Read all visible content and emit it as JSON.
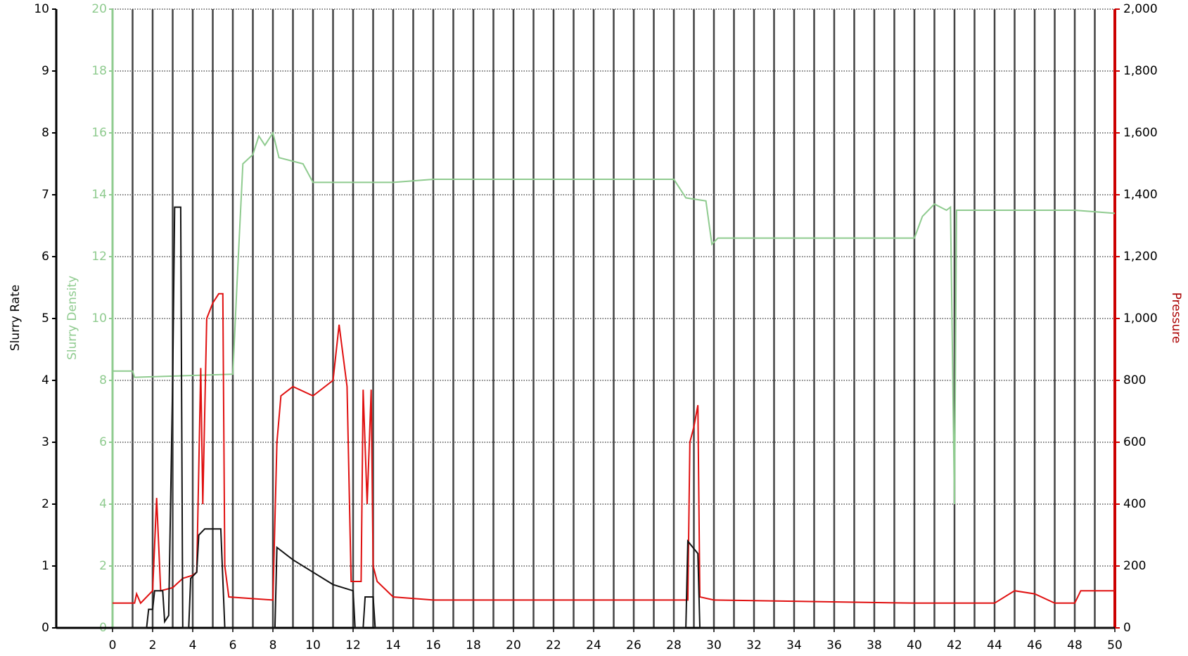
{
  "chart_data": {
    "type": "line",
    "ylabel": "Slurry Rate",
    "y2label": "Slurry Density",
    "y3label": "Pressure",
    "xlim": [
      0,
      50
    ],
    "xticks": [
      0,
      2,
      4,
      6,
      8,
      10,
      12,
      14,
      16,
      18,
      20,
      22,
      24,
      26,
      28,
      30,
      32,
      34,
      36,
      38,
      40,
      42,
      44,
      46,
      48,
      50
    ],
    "xminorticks": [
      1,
      3,
      5,
      7,
      9,
      11,
      13,
      15,
      17,
      19,
      21,
      23,
      25,
      27,
      29,
      31,
      33,
      35,
      37,
      39,
      41,
      43,
      45,
      47,
      49
    ],
    "ylim": [
      0,
      10
    ],
    "yticks": [
      0,
      1,
      2,
      3,
      4,
      5,
      6,
      7,
      8,
      9,
      10
    ],
    "y2lim": [
      0,
      20
    ],
    "y2ticks": [
      0,
      2,
      4,
      6,
      8,
      10,
      12,
      14,
      16,
      18,
      20
    ],
    "y3lim": [
      0,
      2000
    ],
    "y3ticks": [
      0,
      200,
      400,
      600,
      800,
      {
        "value": 1000,
        "label": "1,000"
      },
      {
        "value": 1200,
        "label": "1,200"
      },
      {
        "value": 1400,
        "label": "1,400"
      },
      {
        "value": 1600,
        "label": "1,600"
      },
      {
        "value": 1800,
        "label": "1,800"
      },
      {
        "value": 2000,
        "label": "2,000"
      }
    ],
    "yaxis_color": "#000000",
    "y2axis_color": "#8fcb8f",
    "y3axis_color": "#cc0000",
    "grid": true,
    "series": [
      {
        "axis": "y2",
        "color": "#8fcb8f",
        "x": [
          0,
          1,
          1.1,
          6,
          6.2,
          6.5,
          7,
          7.3,
          7.6,
          8,
          8.3,
          9.5,
          10,
          12,
          14,
          16,
          28,
          28.3,
          28.6,
          29.6,
          29.9,
          30.2,
          40,
          40.4,
          41,
          41.6,
          41.8,
          42,
          42.1,
          48,
          50
        ],
        "values": [
          8.3,
          8.3,
          8.1,
          8.2,
          11,
          15,
          15.3,
          15.9,
          15.6,
          16,
          15.2,
          15,
          14.4,
          14.4,
          14.4,
          14.5,
          14.5,
          14.2,
          13.9,
          13.8,
          12.4,
          12.6,
          12.6,
          13.3,
          13.7,
          13.5,
          13.6,
          4,
          13.5,
          13.5,
          13.4
        ]
      },
      {
        "axis": "y3",
        "color": "#e01010",
        "x": [
          0,
          1.1,
          1.2,
          1.4,
          2,
          2.2,
          2.4,
          3,
          3.5,
          4,
          4.2,
          4.4,
          4.5,
          4.7,
          5,
          5.3,
          5.5,
          5.6,
          5.8,
          8,
          8.2,
          8.4,
          9,
          10,
          11,
          11.3,
          11.7,
          11.9,
          12.4,
          12.5,
          12.7,
          12.9,
          13,
          13.2,
          14,
          16,
          28.7,
          28.8,
          29,
          29.2,
          29.3,
          30,
          40,
          42,
          44,
          45,
          46,
          47,
          48,
          48.3,
          50
        ],
        "values": [
          80,
          80,
          110,
          80,
          120,
          420,
          120,
          130,
          160,
          170,
          180,
          840,
          400,
          1000,
          1050,
          1080,
          1080,
          200,
          100,
          90,
          600,
          750,
          780,
          750,
          800,
          980,
          780,
          150,
          150,
          770,
          400,
          770,
          200,
          150,
          100,
          90,
          90,
          600,
          650,
          720,
          100,
          90,
          80,
          80,
          80,
          120,
          110,
          80,
          80,
          120,
          120
        ]
      },
      {
        "axis": "y",
        "color": "#111111",
        "x": [
          0,
          1.7,
          1.8,
          2,
          2.1,
          2.5,
          2.6,
          2.8,
          3.0,
          3.1,
          3.4,
          3.5,
          3.8,
          3.9,
          4.2,
          4.3,
          4.6,
          5.4,
          5.6,
          8.1,
          8.2,
          9,
          10,
          11,
          12,
          12.1,
          12.5,
          12.6,
          13,
          13.1,
          28.6,
          28.7,
          29.2,
          29.3,
          50
        ],
        "values": [
          0,
          0,
          0.3,
          0.3,
          0.6,
          0.6,
          0.1,
          0.2,
          4,
          6.8,
          6.8,
          0,
          0,
          0.8,
          0.9,
          1.5,
          1.6,
          1.6,
          0,
          0,
          1.3,
          1.1,
          0.9,
          0.7,
          0.6,
          0,
          0,
          0.5,
          0.5,
          0,
          0,
          1.4,
          1.2,
          0,
          0
        ]
      }
    ]
  }
}
